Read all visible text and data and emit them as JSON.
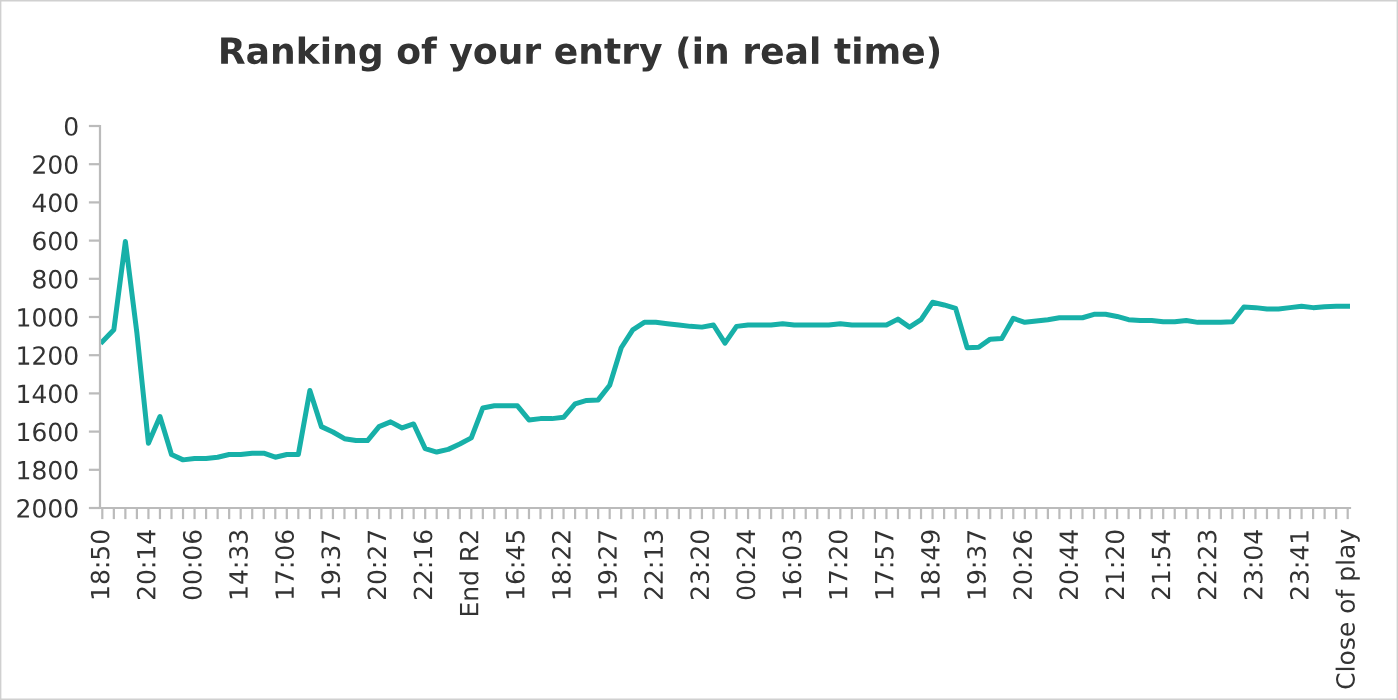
{
  "chart_data": {
    "type": "line",
    "title": "Ranking of your entry (in real time)",
    "categories": [
      "18:50",
      null,
      null,
      null,
      "20:14",
      null,
      null,
      null,
      "00:06",
      null,
      null,
      null,
      "14:33",
      null,
      null,
      null,
      "17:06",
      null,
      null,
      null,
      "19:37",
      null,
      null,
      null,
      "20:27",
      null,
      null,
      null,
      "22:16",
      null,
      null,
      null,
      "End R2",
      null,
      null,
      null,
      "16:45",
      null,
      null,
      null,
      "18:22",
      null,
      null,
      null,
      "19:27",
      null,
      null,
      null,
      "22:13",
      null,
      null,
      null,
      "23:20",
      null,
      null,
      null,
      "00:24",
      null,
      null,
      null,
      "16:03",
      null,
      null,
      null,
      "17:20",
      null,
      null,
      null,
      "17:57",
      null,
      null,
      null,
      "18:49",
      null,
      null,
      null,
      "19:37",
      null,
      null,
      null,
      "20:26",
      null,
      null,
      null,
      "20:44",
      null,
      null,
      null,
      "21:20",
      null,
      null,
      null,
      "21:54",
      null,
      null,
      null,
      "22:23",
      null,
      null,
      null,
      "23:04",
      null,
      null,
      null,
      "23:41",
      null,
      null,
      null,
      "Close of play"
    ],
    "series": [
      {
        "color": "#17b0a8",
        "values": [
          1130,
          1067,
          605,
          1084,
          1661,
          1521,
          1720,
          1748,
          1741,
          1741,
          1734,
          1720,
          1720,
          1713,
          1713,
          1734,
          1720,
          1720,
          1385,
          1574,
          1602,
          1637,
          1647,
          1647,
          1574,
          1549,
          1581,
          1560,
          1689,
          1707,
          1693,
          1665,
          1633,
          1476,
          1465,
          1465,
          1465,
          1539,
          1532,
          1532,
          1525,
          1455,
          1437,
          1434,
          1357,
          1161,
          1067,
          1028,
          1028,
          1035,
          1042,
          1049,
          1053,
          1042,
          1137,
          1049,
          1042,
          1042,
          1042,
          1035,
          1042,
          1042,
          1042,
          1042,
          1035,
          1042,
          1042,
          1042,
          1042,
          1011,
          1053,
          1014,
          923,
          937,
          955,
          1161,
          1158,
          1116,
          1112,
          1007,
          1028,
          1021,
          1014,
          1004,
          1004,
          1004,
          986,
          986,
          997,
          1014,
          1018,
          1018,
          1025,
          1025,
          1018,
          1028,
          1028,
          1028,
          1025,
          948,
          951,
          958,
          958,
          951,
          944,
          951,
          946,
          944,
          944
        ]
      }
    ],
    "ylim": [
      2000,
      0
    ],
    "yticks": [
      0,
      200,
      400,
      600,
      800,
      1000,
      1200,
      1400,
      1600,
      1800,
      2000
    ],
    "grid": false,
    "legend": false,
    "marker": "none",
    "line_style": "solid"
  }
}
